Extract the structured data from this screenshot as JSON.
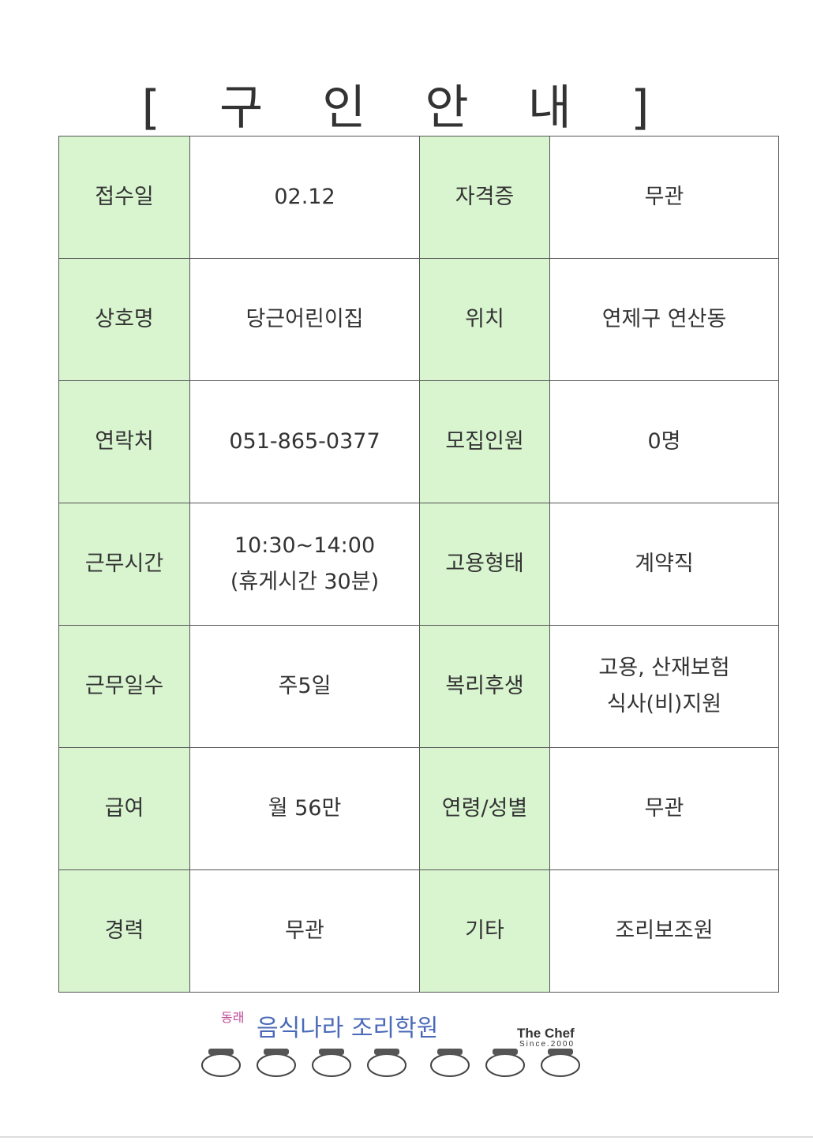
{
  "title": "[ 구 인 안 내 ]",
  "rows": [
    {
      "l1": "접수일",
      "v1": "02.12",
      "l2": "자격증",
      "v2": "무관"
    },
    {
      "l1": "상호명",
      "v1": "당근어린이집",
      "l2": "위치",
      "v2": "연제구  연산동"
    },
    {
      "l1": "연락처",
      "v1": "051-865-0377",
      "l2": "모집인원",
      "v2": "0명"
    },
    {
      "l1": "근무시간",
      "v1a": "10:30~14:00",
      "v1b": "(휴게시간  30분)",
      "l2": "고용형태",
      "v2": "계약직"
    },
    {
      "l1": "근무일수",
      "v1": "주5일",
      "l2": "복리후생",
      "v2a": "고용,  산재보험",
      "v2b": "식사(비)지원"
    },
    {
      "l1": "급여",
      "v1": "월  56만",
      "l2": "연령/성별",
      "v2": "무관"
    },
    {
      "l1": "경력",
      "v1": "무관",
      "l2": "기타",
      "v2": "조리보조원"
    }
  ],
  "logo": {
    "line1": "동래",
    "line2": "음식나라 조리학원",
    "brand": "The Chef",
    "since": "Since.2000"
  },
  "colors": {
    "label_bg": "#d9f5d0",
    "border": "#555555",
    "logo_pink": "#c04a9a",
    "logo_blue": "#4a6ab8"
  }
}
